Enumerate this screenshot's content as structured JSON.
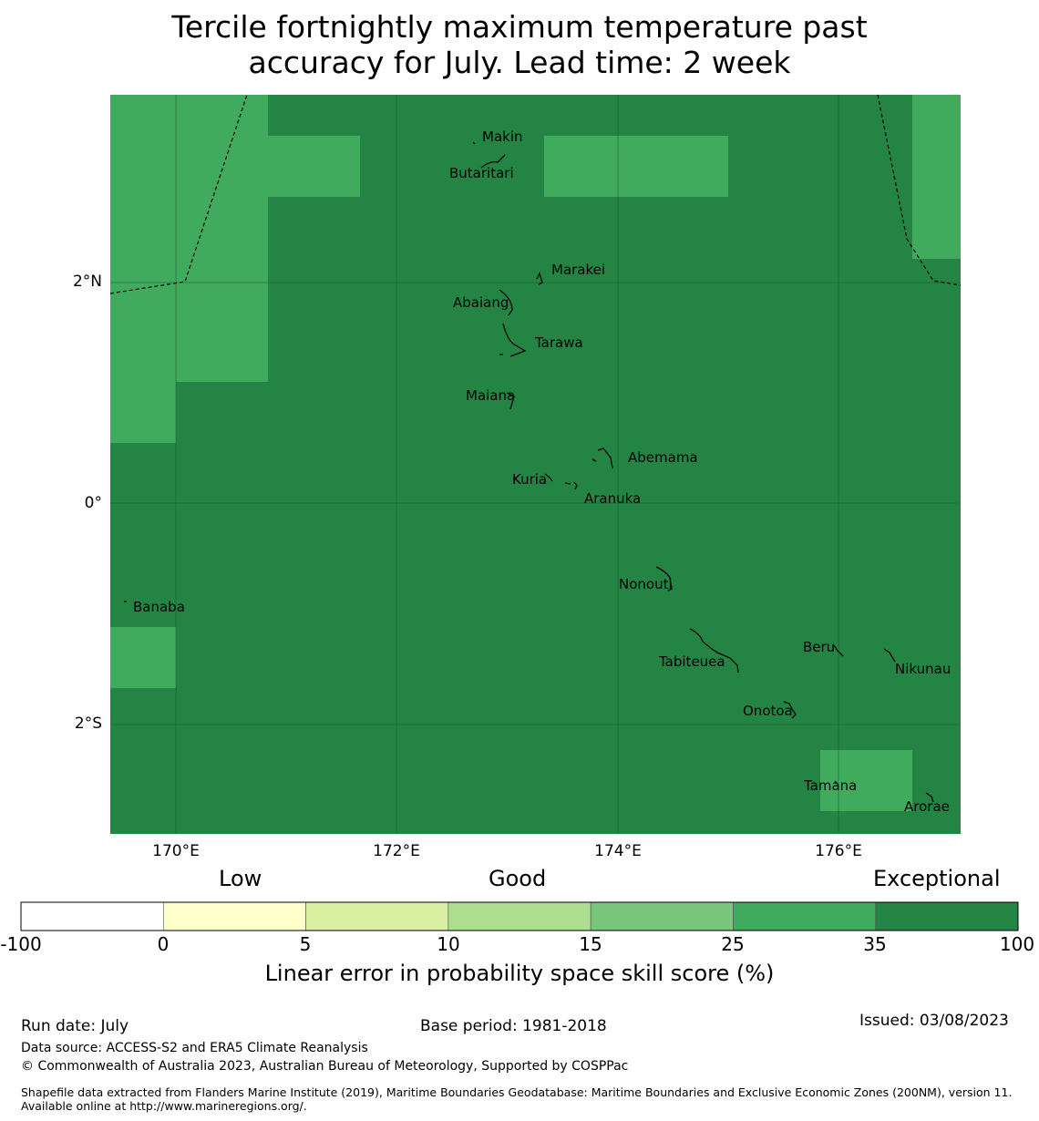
{
  "title": {
    "line1": "Tercile fortnightly maximum temperature past",
    "line2": "accuracy for July. Lead time: 2 week"
  },
  "map": {
    "lat_range": [
      -3.0,
      3.7
    ],
    "lon_range": [
      169.4,
      177.1
    ],
    "y_ticks": [
      "2°N",
      "0°",
      "2°S"
    ],
    "x_ticks": [
      "170°E",
      "172°E",
      "174°E",
      "176°E"
    ],
    "colors": {
      "exceptional": "#238443",
      "high": "#41ab5d",
      "grid": "#1a5e2e"
    },
    "places": [
      {
        "name": "Makin"
      },
      {
        "name": "Butaritari"
      },
      {
        "name": "Marakei"
      },
      {
        "name": "Abaiang"
      },
      {
        "name": "Tarawa"
      },
      {
        "name": "Maiana"
      },
      {
        "name": "Abemama"
      },
      {
        "name": "Kuria"
      },
      {
        "name": "Aranuka"
      },
      {
        "name": "Banaba"
      },
      {
        "name": "Nonouti"
      },
      {
        "name": "Beru"
      },
      {
        "name": "Tabiteuea"
      },
      {
        "name": "Nikunau"
      },
      {
        "name": "Onotoa"
      },
      {
        "name": "Tamana"
      },
      {
        "name": "Arorae"
      }
    ]
  },
  "legend": {
    "categories": [
      "Low",
      "Good",
      "Exceptional"
    ],
    "bins": [
      {
        "from": -100,
        "to": 0,
        "color": "#ffffff"
      },
      {
        "from": 0,
        "to": 5,
        "color": "#ffffcc"
      },
      {
        "from": 5,
        "to": 10,
        "color": "#d9f0a3"
      },
      {
        "from": 10,
        "to": 15,
        "color": "#addd8e"
      },
      {
        "from": 15,
        "to": 25,
        "color": "#78c679"
      },
      {
        "from": 25,
        "to": 35,
        "color": "#41ab5d"
      },
      {
        "from": 35,
        "to": 100,
        "color": "#238443"
      }
    ],
    "tick_labels": [
      "-100",
      "0",
      "5",
      "10",
      "15",
      "25",
      "35",
      "100"
    ],
    "label": "Linear error in probability space skill score (%)"
  },
  "footer": {
    "run_date": "Run date: July",
    "base_period": "Base period: 1981-2018",
    "issued": "Issued: 03/08/2023",
    "data_source": "Data source: ACCESS-S2 and ERA5 Climate Reanalysis",
    "copyright": "© Commonwealth of Australia 2023, Australian Bureau of Meteorology, Supported by COSPPac",
    "shapefile": "Shapefile data extracted from Flanders Marine Institute (2019), Maritime Boundaries Geodatabase: Maritime Boundaries and Exclusive Economic Zones (200NM), version 11. Available online at http://www.marineregions.org/."
  }
}
